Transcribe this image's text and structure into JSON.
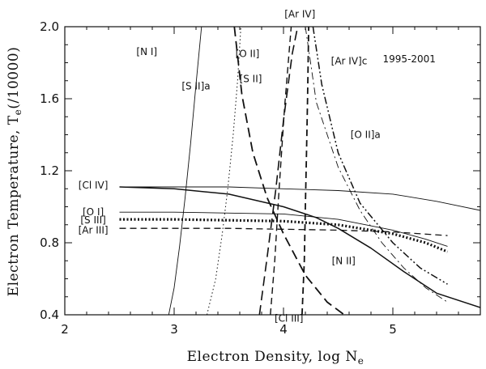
{
  "chart_data": {
    "type": "line",
    "title": "",
    "xlabel": "Electron Density, log N",
    "xlabel_sub": "e",
    "ylabel": "Electron Temperature, T",
    "ylabel_sub": "e",
    "ylabel_suffix": "(/10000)",
    "xlim": [
      2,
      5.8
    ],
    "ylim": [
      0.4,
      2.0
    ],
    "xticks": [
      2,
      3,
      4,
      5
    ],
    "xtick_labels": [
      "2",
      "3",
      "4",
      "5"
    ],
    "yticks": [
      0.4,
      0.8,
      1.2,
      1.6,
      2.0
    ],
    "ytick_labels": [
      "0.4",
      "0.8",
      "1.2",
      "1.6",
      "2.0"
    ],
    "grid": false,
    "annotations": [
      {
        "text": "1995-2001",
        "x": 5.15,
        "y": 1.82
      },
      {
        "text": "[N I]",
        "x": 2.75,
        "y": 1.86
      },
      {
        "text": "[S II]a",
        "x": 3.2,
        "y": 1.67
      },
      {
        "text": "[O II]",
        "x": 3.67,
        "y": 1.85
      },
      {
        "text": "[S II]",
        "x": 3.7,
        "y": 1.71
      },
      {
        "text": "[Ar IV]",
        "x": 4.15,
        "y": 2.07
      },
      {
        "text": "[Ar IV]c",
        "x": 4.6,
        "y": 1.81
      },
      {
        "text": "[O II]a",
        "x": 4.75,
        "y": 1.4
      },
      {
        "text": "[Cl IV]",
        "x": 2.26,
        "y": 1.12
      },
      {
        "text": "[O I]",
        "x": 2.26,
        "y": 0.97
      },
      {
        "text": "[S III]",
        "x": 2.26,
        "y": 0.925
      },
      {
        "text": "[Ar III]",
        "x": 2.26,
        "y": 0.87
      },
      {
        "text": "[N II]",
        "x": 4.55,
        "y": 0.7
      },
      {
        "text": "[Cl III]",
        "x": 4.05,
        "y": 0.38
      }
    ],
    "series": [
      {
        "name": "[N I]",
        "style": "solid",
        "width": 0.9,
        "points": [
          [
            2.95,
            0.4
          ],
          [
            3.0,
            0.55
          ],
          [
            3.05,
            0.78
          ],
          [
            3.1,
            1.05
          ],
          [
            3.15,
            1.35
          ],
          [
            3.2,
            1.68
          ],
          [
            3.25,
            2.0
          ]
        ]
      },
      {
        "name": "[O II]",
        "style": "dotted",
        "width": 1.0,
        "points": [
          [
            3.3,
            0.4
          ],
          [
            3.38,
            0.6
          ],
          [
            3.44,
            0.85
          ],
          [
            3.49,
            1.1
          ],
          [
            3.54,
            1.4
          ],
          [
            3.58,
            1.7
          ],
          [
            3.61,
            2.0
          ]
        ]
      },
      {
        "name": "[S II]a",
        "style": "longdash",
        "width": 1.8,
        "points": [
          [
            3.55,
            2.0
          ],
          [
            3.62,
            1.62
          ],
          [
            3.72,
            1.3
          ],
          [
            3.85,
            1.05
          ],
          [
            4.0,
            0.85
          ],
          [
            4.2,
            0.62
          ],
          [
            4.4,
            0.47
          ],
          [
            4.6,
            0.38
          ]
        ]
      },
      {
        "name": "[S II]",
        "style": "dashed",
        "width": 1.4,
        "points": [
          [
            3.88,
            0.4
          ],
          [
            3.92,
            0.7
          ],
          [
            3.96,
            1.1
          ],
          [
            4.01,
            1.55
          ],
          [
            4.07,
            2.0
          ]
        ]
      },
      {
        "name": "[Ar IV]",
        "style": "dashed",
        "width": 1.8,
        "points": [
          [
            4.17,
            0.4
          ],
          [
            4.19,
            0.7
          ],
          [
            4.2,
            1.0
          ],
          [
            4.21,
            1.3
          ],
          [
            4.22,
            1.6
          ],
          [
            4.23,
            2.0
          ]
        ]
      },
      {
        "name": "[Cl III]",
        "style": "longdash",
        "width": 1.6,
        "points": [
          [
            3.78,
            0.4
          ],
          [
            3.85,
            0.72
          ],
          [
            3.93,
            1.1
          ],
          [
            4.0,
            1.48
          ],
          [
            4.08,
            1.85
          ],
          [
            4.13,
            2.0
          ]
        ]
      },
      {
        "name": "[Ar IV]c",
        "style": "dashdotdot",
        "width": 1.5,
        "points": [
          [
            4.27,
            2.0
          ],
          [
            4.35,
            1.68
          ],
          [
            4.5,
            1.3
          ],
          [
            4.7,
            1.02
          ],
          [
            5.0,
            0.8
          ],
          [
            5.25,
            0.66
          ],
          [
            5.5,
            0.57
          ]
        ]
      },
      {
        "name": "[O II]a",
        "style": "dashdot",
        "width": 0.9,
        "points": [
          [
            4.2,
            2.0
          ],
          [
            4.3,
            1.58
          ],
          [
            4.5,
            1.22
          ],
          [
            4.7,
            0.98
          ],
          [
            4.9,
            0.8
          ],
          [
            5.1,
            0.66
          ],
          [
            5.3,
            0.55
          ],
          [
            5.5,
            0.47
          ]
        ]
      },
      {
        "name": "[Cl IV]",
        "style": "solid",
        "width": 0.9,
        "points": [
          [
            2.5,
            1.11
          ],
          [
            3.0,
            1.11
          ],
          [
            3.5,
            1.11
          ],
          [
            4.0,
            1.1
          ],
          [
            4.5,
            1.09
          ],
          [
            5.0,
            1.07
          ],
          [
            5.4,
            1.03
          ],
          [
            5.8,
            0.98
          ]
        ]
      },
      {
        "name": "[N II]",
        "style": "solid",
        "width": 1.5,
        "points": [
          [
            2.5,
            1.11
          ],
          [
            3.0,
            1.1
          ],
          [
            3.5,
            1.07
          ],
          [
            4.0,
            1.0
          ],
          [
            4.3,
            0.94
          ],
          [
            4.5,
            0.88
          ],
          [
            4.8,
            0.77
          ],
          [
            5.1,
            0.64
          ],
          [
            5.4,
            0.52
          ],
          [
            5.8,
            0.44
          ]
        ]
      },
      {
        "name": "[O I]",
        "style": "solid",
        "width": 0.9,
        "points": [
          [
            2.5,
            0.97
          ],
          [
            3.0,
            0.97
          ],
          [
            3.5,
            0.965
          ],
          [
            4.0,
            0.96
          ],
          [
            4.5,
            0.93
          ],
          [
            5.0,
            0.87
          ],
          [
            5.3,
            0.82
          ],
          [
            5.5,
            0.78
          ]
        ]
      },
      {
        "name": "[S III]",
        "style": "dotted",
        "width": 3.2,
        "points": [
          [
            2.5,
            0.93
          ],
          [
            3.0,
            0.93
          ],
          [
            3.5,
            0.925
          ],
          [
            4.0,
            0.92
          ],
          [
            4.5,
            0.9
          ],
          [
            5.0,
            0.85
          ],
          [
            5.3,
            0.8
          ],
          [
            5.5,
            0.75
          ]
        ]
      },
      {
        "name": "[Ar III]",
        "style": "dashed",
        "width": 1.3,
        "points": [
          [
            2.5,
            0.88
          ],
          [
            3.0,
            0.88
          ],
          [
            3.5,
            0.88
          ],
          [
            4.0,
            0.875
          ],
          [
            4.5,
            0.87
          ],
          [
            5.0,
            0.86
          ],
          [
            5.5,
            0.84
          ]
        ]
      }
    ]
  }
}
